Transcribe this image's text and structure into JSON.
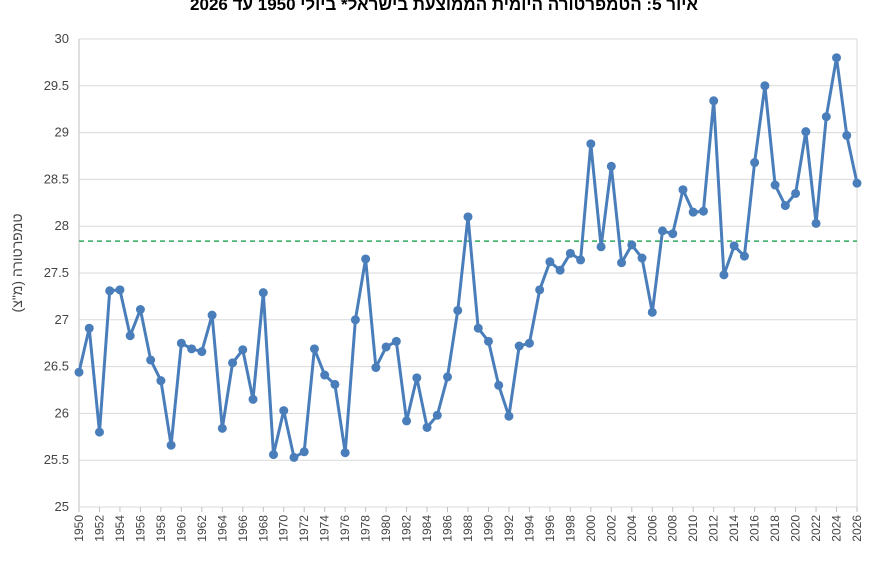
{
  "chart_data": {
    "type": "line",
    "title": "איור 5: הטמפרטורה היומית הממוצעת בישראל* ביולי 1950 עד 2026",
    "xlabel": "",
    "ylabel": "טמפרטורה (מ\"צ)",
    "ylim": [
      25,
      30
    ],
    "yticks": [
      "25",
      "25.5",
      "26",
      "26.5",
      "27",
      "27.5",
      "28",
      "28.5",
      "29",
      "29.5",
      "30"
    ],
    "xticks": [
      "1950",
      "1952",
      "1954",
      "1956",
      "1958",
      "1960",
      "1962",
      "1964",
      "1966",
      "1968",
      "1970",
      "1972",
      "1974",
      "1976",
      "1978",
      "1980",
      "1982",
      "1984",
      "1986",
      "1988",
      "1990",
      "1992",
      "1994",
      "1996",
      "1998",
      "2000",
      "2002",
      "2004",
      "2006",
      "2008",
      "2010",
      "2012",
      "2014",
      "2016",
      "2018",
      "2020",
      "2022",
      "2024",
      "2026"
    ],
    "grid": true,
    "legend": "none",
    "colors": {
      "series": "#4a7ebb",
      "reference": "#2eaa5b",
      "grid": "#d9d9d9",
      "axis": "#bfbfbf"
    },
    "reference_line": {
      "style": "dashed",
      "value": 27.84
    },
    "x": [
      1950,
      1951,
      1952,
      1953,
      1954,
      1955,
      1956,
      1957,
      1958,
      1959,
      1960,
      1961,
      1962,
      1963,
      1964,
      1965,
      1966,
      1967,
      1968,
      1969,
      1970,
      1971,
      1972,
      1973,
      1974,
      1975,
      1976,
      1977,
      1978,
      1979,
      1980,
      1981,
      1982,
      1983,
      1984,
      1985,
      1986,
      1987,
      1988,
      1989,
      1990,
      1991,
      1992,
      1993,
      1994,
      1995,
      1996,
      1997,
      1998,
      1999,
      2000,
      2001,
      2002,
      2003,
      2004,
      2005,
      2006,
      2007,
      2008,
      2009,
      2010,
      2011,
      2012,
      2013,
      2014,
      2015,
      2016,
      2017,
      2018,
      2019,
      2020,
      2021,
      2022,
      2023,
      2024,
      2025,
      2026
    ],
    "series": [
      {
        "values": [
          26.44,
          26.91,
          25.8,
          27.31,
          27.32,
          26.83,
          27.11,
          26.57,
          26.35,
          25.66,
          26.75,
          26.69,
          26.66,
          27.05,
          25.84,
          26.54,
          26.68,
          26.15,
          27.29,
          25.56,
          26.03,
          25.53,
          25.59,
          26.69,
          26.41,
          26.31,
          25.58,
          27.0,
          27.65,
          26.49,
          26.71,
          26.77,
          25.92,
          26.38,
          25.85,
          25.98,
          26.39,
          27.1,
          28.1,
          26.91,
          26.77,
          26.3,
          25.97,
          26.72,
          26.75,
          27.32,
          27.62,
          27.53,
          27.71,
          27.64,
          28.88,
          27.78,
          28.64,
          27.61,
          27.8,
          27.66,
          27.08,
          27.95,
          27.92,
          28.39,
          28.15,
          28.16,
          29.34,
          27.48,
          27.79,
          27.68,
          28.68,
          29.5,
          28.44,
          28.22,
          28.35,
          29.01,
          28.03,
          29.17,
          29.8,
          28.97,
          28.46
        ]
      }
    ]
  }
}
